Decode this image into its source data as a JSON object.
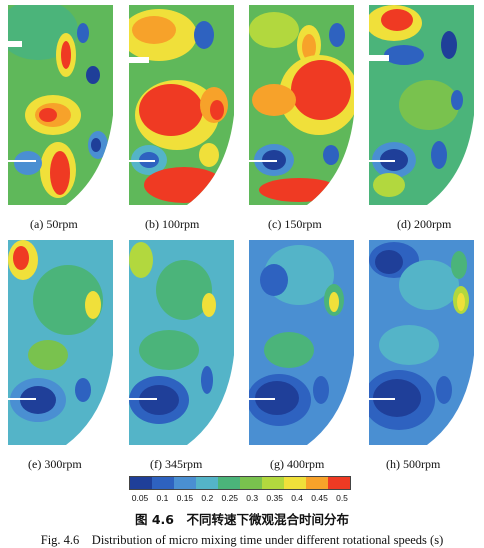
{
  "figure": {
    "panels": [
      {
        "label": "(a) 50rpm"
      },
      {
        "label": "(b) 100rpm"
      },
      {
        "label": "(c) 150rpm"
      },
      {
        "label": "(d) 200rpm"
      },
      {
        "label": "(e) 300rpm"
      },
      {
        "label": "(f) 345rpm"
      },
      {
        "label": "(g) 400rpm"
      },
      {
        "label": "(h) 500rpm"
      }
    ],
    "colorbar": {
      "ticks": [
        "0.05",
        "0.1",
        "0.15",
        "0.2",
        "0.25",
        "0.3",
        "0.35",
        "0.4",
        "0.45",
        "0.5"
      ],
      "colors": [
        "#1f3f99",
        "#2e62c0",
        "#4a8fd2",
        "#54b4c8",
        "#4bb47a",
        "#79c24e",
        "#b2d83e",
        "#f0e03a",
        "#f7a22a",
        "#ef3a23"
      ]
    },
    "title_cn": "图 4.6　不同转速下微观混合时间分布",
    "title_en": "Fig. 4.6　Distribution of micro mixing time under different rotational speeds (s)"
  }
}
